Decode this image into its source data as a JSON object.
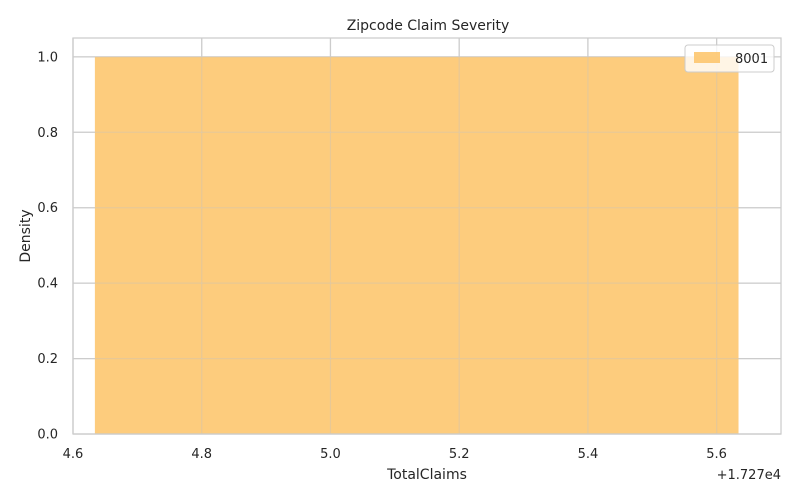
{
  "chart_data": {
    "type": "bar",
    "title": "Zipcode Claim Severity",
    "xlabel": "TotalClaims",
    "ylabel": "Density",
    "x_offset_label": "+1.727e4",
    "xlim": [
      4.6,
      5.7
    ],
    "ylim": [
      0,
      1.05
    ],
    "xticks": [
      4.6,
      4.8,
      5.0,
      5.2,
      5.4,
      5.6
    ],
    "xtick_labels": [
      "4.6",
      "4.8",
      "5.0",
      "5.2",
      "5.4",
      "5.6"
    ],
    "yticks": [
      0.0,
      0.2,
      0.4,
      0.6,
      0.8,
      1.0
    ],
    "ytick_labels": [
      "0.0",
      "0.2",
      "0.4",
      "0.6",
      "0.8",
      "1.0"
    ],
    "grid": true,
    "legend_position": "top-right",
    "series": [
      {
        "name": "8001",
        "color": "#fdc76f",
        "bins": [
          {
            "x_start": 4.634,
            "x_end": 5.634,
            "density": 1.0
          }
        ]
      }
    ]
  }
}
